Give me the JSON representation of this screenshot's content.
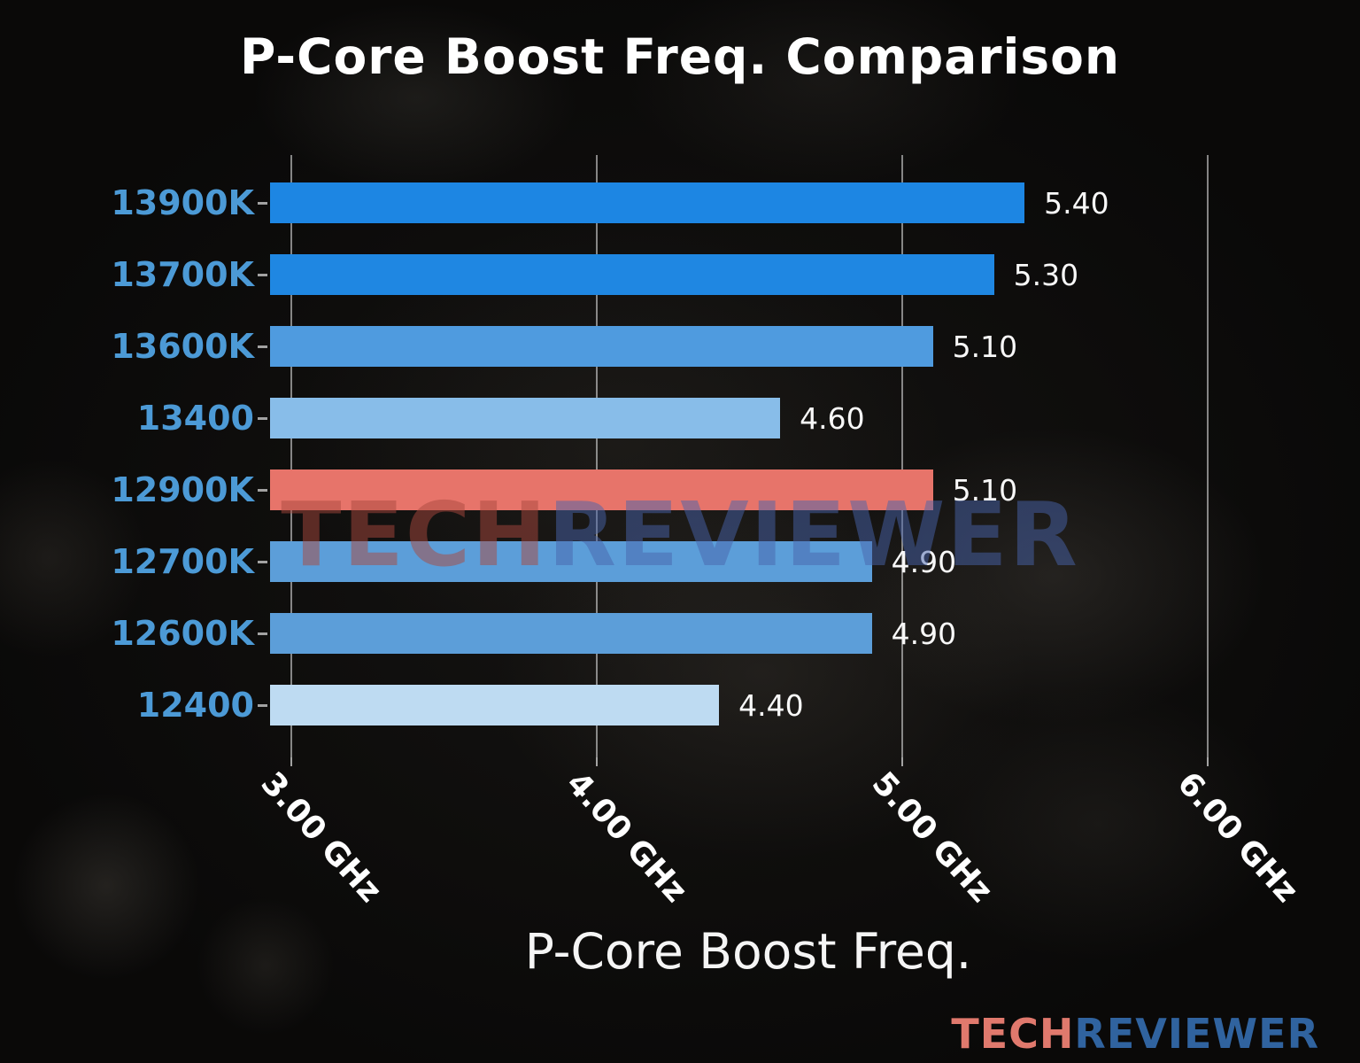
{
  "title": "P-Core Boost Freq. Comparison",
  "watermark": {
    "part1": "TECH",
    "part2": "REVIEWER"
  },
  "logo": {
    "part1": "TECH",
    "part2": "REVIEWER"
  },
  "chart_data": {
    "type": "bar",
    "orientation": "horizontal",
    "title": "P-Core Boost Freq. Comparison",
    "xlabel": "P-Core Boost Freq.",
    "ylabel": "",
    "categories": [
      "13900K",
      "13700K",
      "13600K",
      "13400",
      "12900K",
      "12700K",
      "12600K",
      "12400"
    ],
    "values": [
      5.4,
      5.3,
      5.1,
      4.6,
      5.1,
      4.9,
      4.9,
      4.4
    ],
    "value_labels": [
      "5.40",
      "5.30",
      "5.10",
      "4.60",
      "5.10",
      "4.90",
      "4.90",
      "4.40"
    ],
    "unit": "GHz",
    "bar_colors": [
      "#1d86e3",
      "#1f87e2",
      "#4f9bdf",
      "#88bde9",
      "#e7746a",
      "#5c9ed9",
      "#5c9ed9",
      "#bedbf2"
    ],
    "highlight_index": 4,
    "highlight_category": "12900K",
    "highlight_color": "#e7746a",
    "category_label_color": "#4c9ad6",
    "value_label_color": "#f8f8f8",
    "x_ticks": [
      3.0,
      4.0,
      5.0,
      6.0
    ],
    "x_tick_labels": [
      "3.00 GHz",
      "4.00 GHz",
      "5.00 GHz",
      "6.00 GHz"
    ],
    "xlim": [
      2.93,
      6.35
    ],
    "grid": true,
    "legend": false,
    "background": "dark blurred motherboard photo"
  }
}
